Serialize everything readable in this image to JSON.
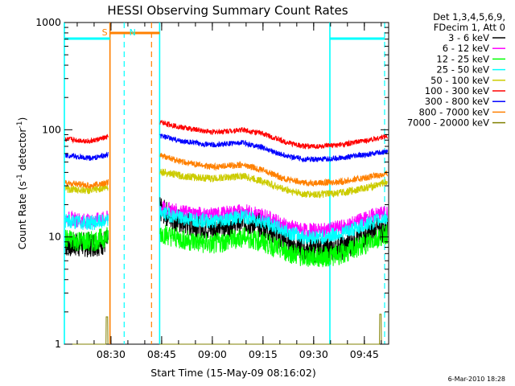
{
  "chart_data": {
    "type": "line",
    "title": "HESSI Observing Summary Count Rates",
    "xlabel": "Start Time (15-May-09 08:16:02)",
    "ylabel_main": "Count Rate (s",
    "ylabel_sup1": "-1",
    "ylabel_mid": " detector",
    "ylabel_sup2": "-1",
    "ylabel_end": ")",
    "yscale": "log",
    "ylim": [
      1,
      1000
    ],
    "xlim_minutes": [
      8.27,
      9.87
    ],
    "ytick_values": [
      1,
      10,
      100,
      1000
    ],
    "ytick_labels": [
      "1",
      "10",
      "100",
      "1000"
    ],
    "xtick_hours": [
      8.5,
      8.75,
      9.0,
      9.25,
      9.5,
      9.75
    ],
    "xtick_labels": [
      "08:30",
      "08:45",
      "09:00",
      "09:15",
      "09:30",
      "09:45"
    ],
    "legend_header": [
      "Det 1,3,4,5,6,9,",
      "FDecim 1, Att 0"
    ],
    "legend_position": "top-right, outside plot",
    "timestamp": "6-Mar-2010 18:28",
    "gaps": [
      {
        "start": 8.487,
        "end": 8.495
      },
      {
        "start": 8.495,
        "end": 8.74
      }
    ],
    "series": [
      {
        "name": "3 - 6 keV",
        "color": "#000000",
        "x": [
          8.27,
          8.4,
          8.48,
          8.74,
          8.85,
          9.0,
          9.15,
          9.25,
          9.35,
          9.45,
          9.55,
          9.65,
          9.8,
          9.87
        ],
        "y": [
          8.5,
          8.5,
          9,
          18,
          13.5,
          12,
          14,
          12.5,
          9.5,
          7.5,
          7.5,
          8,
          11.5,
          11.5
        ]
      },
      {
        "name": "6 - 12 keV",
        "color": "#ff00ff",
        "x": [
          8.27,
          8.4,
          8.48,
          8.74,
          8.85,
          9.0,
          9.15,
          9.25,
          9.35,
          9.45,
          9.55,
          9.65,
          9.8,
          9.87
        ],
        "y": [
          15,
          14,
          15,
          19,
          17,
          16,
          17.5,
          16,
          13,
          11.5,
          11.5,
          12.5,
          16,
          17
        ]
      },
      {
        "name": "12 - 25 keV",
        "color": "#00ff00",
        "x": [
          8.27,
          8.4,
          8.48,
          8.74,
          8.85,
          9.0,
          9.15,
          9.25,
          9.35,
          9.45,
          9.55,
          9.65,
          9.8,
          9.87
        ],
        "y": [
          9.5,
          9,
          10,
          11,
          9.5,
          8.5,
          10,
          9,
          7.5,
          6.5,
          6.5,
          7,
          9.5,
          11
        ]
      },
      {
        "name": "25 - 50 keV",
        "color": "#00ffff",
        "x": [
          8.27,
          8.4,
          8.48,
          8.74,
          8.85,
          9.0,
          9.15,
          9.25,
          9.35,
          9.45,
          9.55,
          9.65,
          9.8,
          9.87
        ],
        "y": [
          14,
          13.5,
          14,
          17,
          15,
          14,
          15.5,
          14,
          11.5,
          10,
          10,
          11,
          14,
          15.5
        ]
      },
      {
        "name": "50 - 100 keV",
        "color": "#cccc00",
        "x": [
          8.27,
          8.4,
          8.48,
          8.74,
          8.85,
          9.0,
          9.15,
          9.25,
          9.35,
          9.45,
          9.55,
          9.65,
          9.8,
          9.87
        ],
        "y": [
          28,
          27,
          29,
          41,
          37,
          35,
          37,
          33,
          28,
          25,
          25,
          26,
          30,
          33
        ]
      },
      {
        "name": "100 - 300 keV",
        "color": "#ff0000",
        "x": [
          8.27,
          8.4,
          8.48,
          8.74,
          8.85,
          9.0,
          9.15,
          9.25,
          9.35,
          9.45,
          9.55,
          9.65,
          9.8,
          9.87
        ],
        "y": [
          82,
          78,
          85,
          118,
          105,
          95,
          100,
          92,
          78,
          70,
          70,
          73,
          82,
          88
        ]
      },
      {
        "name": "300 - 800 keV",
        "color": "#0000ff",
        "x": [
          8.27,
          8.4,
          8.48,
          8.74,
          8.85,
          9.0,
          9.15,
          9.25,
          9.35,
          9.45,
          9.55,
          9.65,
          9.8,
          9.87
        ],
        "y": [
          58,
          54,
          58,
          88,
          78,
          72,
          76,
          68,
          58,
          53,
          53,
          55,
          60,
          63
        ]
      },
      {
        "name": "800 - 7000 keV",
        "color": "#ff8000",
        "x": [
          8.27,
          8.4,
          8.48,
          8.74,
          8.85,
          9.0,
          9.15,
          9.25,
          9.35,
          9.45,
          9.55,
          9.65,
          9.8,
          9.87
        ],
        "y": [
          32,
          30,
          32,
          58,
          50,
          45,
          47,
          42,
          35,
          32,
          32,
          33,
          37,
          39
        ]
      },
      {
        "name": "7000 - 20000 keV",
        "color": "#808000",
        "x": [
          8.27,
          8.45,
          8.48,
          8.74,
          9.0,
          9.5,
          9.8,
          9.83,
          9.87
        ],
        "y": [
          1,
          1,
          1.8,
          1,
          1,
          1,
          1,
          1.9,
          1
        ]
      }
    ],
    "flags": [
      {
        "label": "S",
        "color": "#ff8000",
        "x_start": 8.495,
        "x_end": 8.74
      },
      {
        "label": "N",
        "color": "#00ffff",
        "x_start": 8.27,
        "x_end": 8.495
      },
      {
        "label": "",
        "color": "#00ffff",
        "x_start": 9.58,
        "x_end": 9.85
      }
    ],
    "markers": [
      {
        "x": 8.27,
        "color": "#00ffff",
        "style": "solid"
      },
      {
        "x": 8.495,
        "color": "#ff8000",
        "style": "solid"
      },
      {
        "x": 8.565,
        "color": "#00ffff",
        "style": "dashed"
      },
      {
        "x": 8.7,
        "color": "#ff8000",
        "style": "dashed"
      },
      {
        "x": 8.74,
        "color": "#00ffff",
        "style": "solid"
      },
      {
        "x": 9.58,
        "color": "#00ffff",
        "style": "solid"
      },
      {
        "x": 9.85,
        "color": "#00ffff",
        "style": "dashed"
      }
    ]
  }
}
